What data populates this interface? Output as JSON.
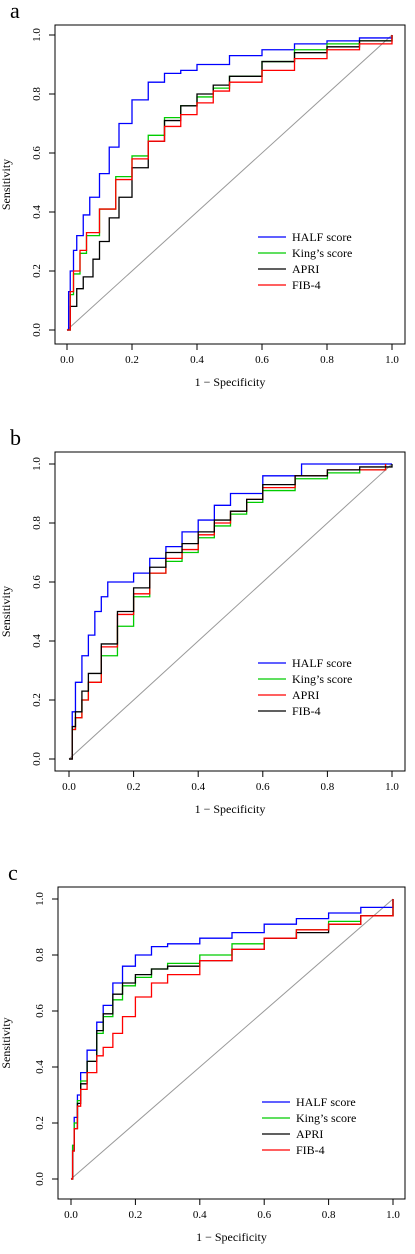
{
  "chart_data": [
    {
      "type": "line",
      "panel_label": "a",
      "title": "",
      "xlabel": "1 − Specificity",
      "ylabel": "Sensitivity",
      "xlim": [
        0,
        1
      ],
      "ylim": [
        0,
        1
      ],
      "x_ticks": [
        0,
        0.2,
        0.4,
        0.6,
        0.8,
        1
      ],
      "x_tick_labels": [
        "0.0",
        "0.2",
        "0.4",
        "0.6",
        "0.8",
        "1.0"
      ],
      "y_ticks": [
        0,
        0.2,
        0.4,
        0.6,
        0.8,
        1
      ],
      "y_tick_labels": [
        "0.0",
        "0.2",
        "0.4",
        "0.6",
        "0.8",
        "1.0"
      ],
      "grid": false,
      "legend_position": "bottom-right",
      "reference_line": {
        "x": [
          0,
          1
        ],
        "y": [
          0,
          1
        ],
        "color": "#999999"
      },
      "series": [
        {
          "name": "HALF score",
          "color": "#0000ff",
          "x": [
            0,
            0.005,
            0.01,
            0.02,
            0.03,
            0.05,
            0.07,
            0.1,
            0.13,
            0.16,
            0.2,
            0.25,
            0.3,
            0.35,
            0.4,
            0.5,
            0.6,
            0.7,
            0.8,
            0.9,
            1
          ],
          "y": [
            0,
            0.13,
            0.2,
            0.27,
            0.32,
            0.39,
            0.45,
            0.53,
            0.62,
            0.7,
            0.78,
            0.84,
            0.87,
            0.88,
            0.9,
            0.93,
            0.95,
            0.97,
            0.98,
            0.99,
            1
          ]
        },
        {
          "name": "King’s score",
          "color": "#00cc00",
          "x": [
            0,
            0.01,
            0.02,
            0.04,
            0.06,
            0.1,
            0.15,
            0.2,
            0.25,
            0.3,
            0.35,
            0.4,
            0.45,
            0.5,
            0.6,
            0.7,
            0.8,
            0.9,
            1
          ],
          "y": [
            0,
            0.12,
            0.19,
            0.26,
            0.32,
            0.41,
            0.52,
            0.59,
            0.66,
            0.72,
            0.76,
            0.79,
            0.82,
            0.86,
            0.91,
            0.95,
            0.97,
            0.98,
            1
          ]
        },
        {
          "name": "APRI",
          "color": "#000000",
          "x": [
            0,
            0.01,
            0.03,
            0.05,
            0.08,
            0.1,
            0.13,
            0.16,
            0.2,
            0.25,
            0.3,
            0.35,
            0.4,
            0.45,
            0.5,
            0.6,
            0.7,
            0.8,
            0.9,
            1
          ],
          "y": [
            0,
            0.08,
            0.14,
            0.18,
            0.24,
            0.3,
            0.38,
            0.45,
            0.55,
            0.64,
            0.71,
            0.76,
            0.8,
            0.83,
            0.86,
            0.91,
            0.94,
            0.96,
            0.98,
            1
          ]
        },
        {
          "name": "FIB-4",
          "color": "#ff0000",
          "x": [
            0,
            0.01,
            0.02,
            0.04,
            0.06,
            0.1,
            0.15,
            0.2,
            0.25,
            0.3,
            0.35,
            0.4,
            0.45,
            0.5,
            0.6,
            0.7,
            0.8,
            0.9,
            1
          ],
          "y": [
            0,
            0.13,
            0.2,
            0.27,
            0.33,
            0.41,
            0.51,
            0.58,
            0.64,
            0.69,
            0.73,
            0.77,
            0.81,
            0.84,
            0.88,
            0.92,
            0.95,
            0.97,
            1
          ]
        }
      ]
    },
    {
      "type": "line",
      "panel_label": "b",
      "title": "",
      "xlabel": "1 − Specificity",
      "ylabel": "Sensitivity",
      "xlim": [
        0,
        1
      ],
      "ylim": [
        0,
        1
      ],
      "x_ticks": [
        0,
        0.2,
        0.4,
        0.6,
        0.8,
        1
      ],
      "x_tick_labels": [
        "0.0",
        "0.2",
        "0.4",
        "0.6",
        "0.8",
        "1.0"
      ],
      "y_ticks": [
        0,
        0.2,
        0.4,
        0.6,
        0.8,
        1
      ],
      "y_tick_labels": [
        "0.0",
        "0.2",
        "0.4",
        "0.6",
        "0.8",
        "1.0"
      ],
      "grid": false,
      "legend_position": "bottom-right",
      "reference_line": {
        "x": [
          0,
          1
        ],
        "y": [
          0,
          1
        ],
        "color": "#999999"
      },
      "series": [
        {
          "name": "HALF score",
          "color": "#0000ff",
          "x": [
            0,
            0.01,
            0.02,
            0.04,
            0.06,
            0.08,
            0.1,
            0.12,
            0.16,
            0.2,
            0.25,
            0.3,
            0.35,
            0.4,
            0.45,
            0.5,
            0.6,
            0.72,
            0.8,
            1
          ],
          "y": [
            0,
            0.16,
            0.26,
            0.35,
            0.42,
            0.5,
            0.55,
            0.6,
            0.6,
            0.63,
            0.68,
            0.72,
            0.77,
            0.81,
            0.86,
            0.9,
            0.96,
            1,
            1,
            1
          ]
        },
        {
          "name": "King’s score",
          "color": "#00cc00",
          "x": [
            0,
            0.01,
            0.02,
            0.04,
            0.06,
            0.1,
            0.15,
            0.2,
            0.25,
            0.3,
            0.35,
            0.4,
            0.45,
            0.5,
            0.55,
            0.6,
            0.7,
            0.8,
            0.9,
            0.98
          ],
          "y": [
            0,
            0.1,
            0.14,
            0.2,
            0.26,
            0.35,
            0.45,
            0.55,
            0.63,
            0.67,
            0.7,
            0.75,
            0.79,
            0.83,
            0.87,
            0.91,
            0.95,
            0.97,
            0.98,
            1
          ]
        },
        {
          "name": "APRI",
          "color": "#ff0000",
          "x": [
            0,
            0.01,
            0.02,
            0.04,
            0.06,
            0.1,
            0.15,
            0.2,
            0.25,
            0.3,
            0.35,
            0.4,
            0.45,
            0.5,
            0.55,
            0.6,
            0.7,
            0.8,
            0.9,
            0.98
          ],
          "y": [
            0,
            0.1,
            0.14,
            0.2,
            0.26,
            0.38,
            0.49,
            0.56,
            0.63,
            0.68,
            0.71,
            0.76,
            0.8,
            0.84,
            0.88,
            0.92,
            0.96,
            0.98,
            0.98,
            1
          ]
        },
        {
          "name": "FIB-4",
          "color": "#000000",
          "x": [
            0,
            0.01,
            0.02,
            0.04,
            0.06,
            0.1,
            0.15,
            0.2,
            0.25,
            0.3,
            0.35,
            0.4,
            0.45,
            0.5,
            0.55,
            0.6,
            0.7,
            0.8,
            0.9,
            1
          ],
          "y": [
            0,
            0.11,
            0.16,
            0.23,
            0.29,
            0.39,
            0.5,
            0.58,
            0.65,
            0.7,
            0.73,
            0.77,
            0.81,
            0.84,
            0.88,
            0.93,
            0.96,
            0.98,
            0.99,
            1
          ]
        }
      ]
    },
    {
      "type": "line",
      "panel_label": "c",
      "title": "",
      "xlabel": "1 − Specificity",
      "ylabel": "Sensitivity",
      "xlim": [
        0,
        1
      ],
      "ylim": [
        0,
        1
      ],
      "x_ticks": [
        0,
        0.2,
        0.4,
        0.6,
        0.8,
        1
      ],
      "x_tick_labels": [
        "0.0",
        "0.2",
        "0.4",
        "0.6",
        "0.8",
        "1.0"
      ],
      "y_ticks": [
        0,
        0.2,
        0.4,
        0.6,
        0.8,
        1
      ],
      "y_tick_labels": [
        "0.0",
        "0.2",
        "0.4",
        "0.6",
        "0.8",
        "1.0"
      ],
      "grid": false,
      "legend_position": "bottom-right",
      "reference_line": {
        "x": [
          0,
          1
        ],
        "y": [
          0,
          1
        ],
        "color": "#999999"
      },
      "series": [
        {
          "name": "HALF score",
          "color": "#0000ff",
          "x": [
            0,
            0.005,
            0.01,
            0.02,
            0.03,
            0.05,
            0.08,
            0.1,
            0.13,
            0.16,
            0.2,
            0.25,
            0.3,
            0.4,
            0.5,
            0.6,
            0.7,
            0.8,
            0.9,
            1
          ],
          "y": [
            0,
            0.12,
            0.22,
            0.3,
            0.38,
            0.46,
            0.56,
            0.62,
            0.7,
            0.76,
            0.8,
            0.83,
            0.84,
            0.86,
            0.88,
            0.91,
            0.93,
            0.95,
            0.97,
            1
          ]
        },
        {
          "name": "King’s score",
          "color": "#00cc00",
          "x": [
            0,
            0.005,
            0.01,
            0.02,
            0.03,
            0.05,
            0.08,
            0.1,
            0.13,
            0.16,
            0.2,
            0.25,
            0.3,
            0.4,
            0.5,
            0.6,
            0.7,
            0.8,
            0.9,
            1
          ],
          "y": [
            0,
            0.12,
            0.2,
            0.28,
            0.35,
            0.42,
            0.52,
            0.58,
            0.64,
            0.69,
            0.72,
            0.75,
            0.77,
            0.8,
            0.84,
            0.86,
            0.89,
            0.92,
            0.94,
            1
          ]
        },
        {
          "name": "APRI",
          "color": "#000000",
          "x": [
            0,
            0.005,
            0.01,
            0.02,
            0.03,
            0.05,
            0.08,
            0.1,
            0.13,
            0.16,
            0.2,
            0.25,
            0.3,
            0.4,
            0.5,
            0.6,
            0.7,
            0.8,
            0.9,
            1
          ],
          "y": [
            0,
            0.1,
            0.18,
            0.27,
            0.34,
            0.42,
            0.53,
            0.59,
            0.66,
            0.7,
            0.73,
            0.75,
            0.76,
            0.78,
            0.82,
            0.86,
            0.88,
            0.91,
            0.94,
            1
          ]
        },
        {
          "name": "FIB-4",
          "color": "#ff0000",
          "x": [
            0,
            0.005,
            0.01,
            0.02,
            0.03,
            0.05,
            0.08,
            0.1,
            0.13,
            0.16,
            0.2,
            0.25,
            0.3,
            0.4,
            0.5,
            0.6,
            0.7,
            0.8,
            0.9,
            1
          ],
          "y": [
            0,
            0.1,
            0.18,
            0.26,
            0.32,
            0.38,
            0.44,
            0.47,
            0.52,
            0.58,
            0.65,
            0.7,
            0.73,
            0.78,
            0.82,
            0.86,
            0.89,
            0.91,
            0.94,
            1
          ]
        }
      ]
    }
  ]
}
